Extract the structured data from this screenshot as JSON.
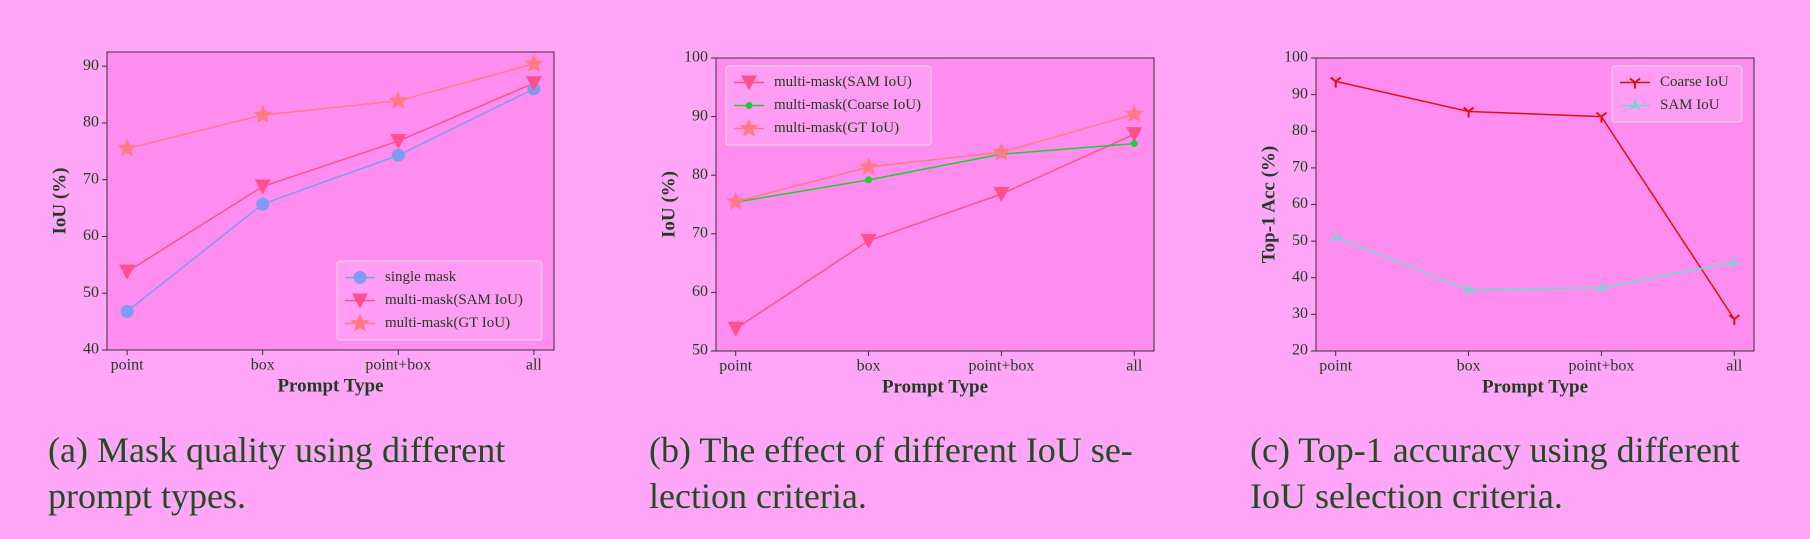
{
  "chart_data": [
    {
      "type": "line",
      "x_label": "Prompt Type",
      "y_label": "IoU (%)",
      "categories": [
        "point",
        "box",
        "point+box",
        "all"
      ],
      "ylim": [
        40,
        92.5
      ],
      "yticks": [
        40,
        50,
        60,
        70,
        80,
        90
      ],
      "legend": "lower right",
      "series": [
        {
          "name": "single mask",
          "color": "#7d9cf2",
          "marker": "circle",
          "values": [
            46.8,
            65.7,
            74.3,
            86.0
          ]
        },
        {
          "name": "multi-mask(SAM IoU)",
          "color": "#ff4f8f",
          "marker": "triangle",
          "values": [
            53.8,
            68.8,
            76.8,
            87.0
          ]
        },
        {
          "name": "multi-mask(GT IoU)",
          "color": "#ff7a86",
          "marker": "star",
          "values": [
            75.5,
            81.4,
            83.9,
            90.4
          ]
        }
      ],
      "caption": [
        "(a) Mask quality using different",
        "prompt types."
      ]
    },
    {
      "type": "line",
      "x_label": "Prompt Type",
      "y_label": "IoU (%)",
      "categories": [
        "point",
        "box",
        "point+box",
        "all"
      ],
      "ylim": [
        50,
        100
      ],
      "yticks": [
        50,
        60,
        70,
        80,
        90,
        100
      ],
      "legend": "upper left",
      "series": [
        {
          "name": "multi-mask(SAM IoU)",
          "color": "#ff4f8f",
          "marker": "triangle",
          "values": [
            53.8,
            68.8,
            76.8,
            87.0
          ]
        },
        {
          "name": "multi-mask(Coarse IoU)",
          "color": "#22cc33",
          "marker": "dot",
          "values": [
            75.4,
            79.2,
            83.6,
            85.4
          ]
        },
        {
          "name": "multi-mask(GT IoU)",
          "color": "#ff7a86",
          "marker": "star",
          "values": [
            75.5,
            81.4,
            83.9,
            90.4
          ]
        }
      ],
      "caption": [
        "(b) The effect of different IoU se-",
        "lection criteria."
      ]
    },
    {
      "type": "line",
      "x_label": "Prompt Type",
      "y_label": "Top-1 Acc (%)",
      "categories": [
        "point",
        "box",
        "point+box",
        "all"
      ],
      "ylim": [
        20,
        100
      ],
      "yticks": [
        20,
        30,
        40,
        50,
        60,
        70,
        80,
        90,
        100
      ],
      "legend": "upper right",
      "series": [
        {
          "name": "Coarse IoU",
          "color": "#dd1111",
          "marker": "tri-down",
          "values": [
            93.6,
            85.4,
            84.0,
            28.7
          ]
        },
        {
          "name": "SAM IoU",
          "color": "#66ddcc",
          "marker": "tri-up",
          "values": [
            51.2,
            36.7,
            37.3,
            44.2
          ]
        }
      ],
      "caption": [
        "(c) Top-1 accuracy using different",
        "IoU selection criteria."
      ]
    }
  ]
}
